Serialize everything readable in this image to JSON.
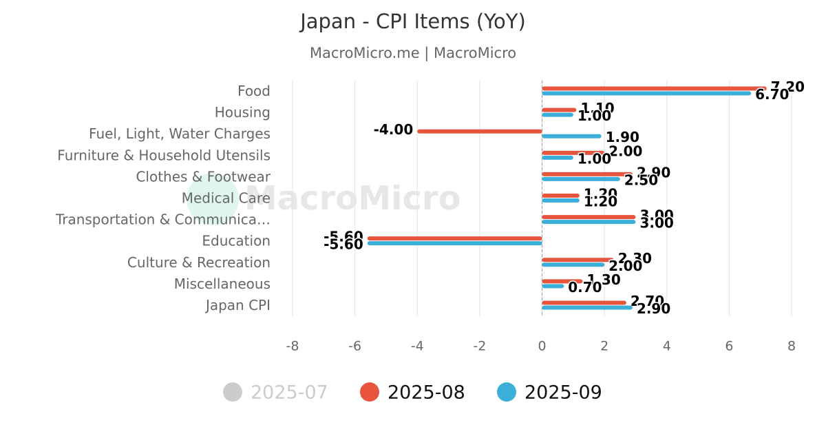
{
  "chart_data": {
    "type": "bar",
    "orientation": "horizontal",
    "title": "Japan - CPI Items (YoY)",
    "subtitle": "MacroMicro.me | MacroMicro",
    "watermark": "MacroMicro",
    "categories": [
      "Food",
      "Housing",
      "Fuel, Light, Water Charges",
      "Furniture & Household Utensils",
      "Clothes & Footwear",
      "Medical Care",
      "Transportation & Communica…",
      "Education",
      "Culture & Recreation",
      "Miscellaneous",
      "Japan CPI"
    ],
    "series": [
      {
        "name": "2025-07",
        "color": "#cccccc",
        "visible": false,
        "values": [
          null,
          null,
          null,
          null,
          null,
          null,
          null,
          null,
          null,
          null,
          null
        ]
      },
      {
        "name": "2025-08",
        "color": "#e8553e",
        "visible": true,
        "values": [
          7.2,
          1.1,
          -4,
          2,
          2.9,
          1.2,
          3,
          -5.6,
          2.3,
          1.3,
          2.7
        ],
        "value_labels": [
          "7.20",
          "1.10",
          "-4.00",
          "2.00",
          "2.90",
          "1.20",
          "3.00",
          "-5.60",
          "2.30",
          "1.30",
          "2.70"
        ]
      },
      {
        "name": "2025-09",
        "color": "#3bafd9",
        "visible": true,
        "values": [
          6.7,
          1,
          1.9,
          1,
          2.5,
          1.2,
          3,
          -5.6,
          2,
          0.7,
          2.9
        ],
        "value_labels": [
          "6.70",
          "1.00",
          "1.90",
          "1.00",
          "2.50",
          "1.20",
          "3.00",
          "-5.60",
          "2.00",
          "0.70",
          "2.90"
        ]
      }
    ],
    "xlim": [
      -8,
      8
    ],
    "xticks": [
      -8,
      -6,
      -4,
      -2,
      0,
      2,
      4,
      6,
      8
    ],
    "grid": true,
    "legend": "bottom"
  }
}
